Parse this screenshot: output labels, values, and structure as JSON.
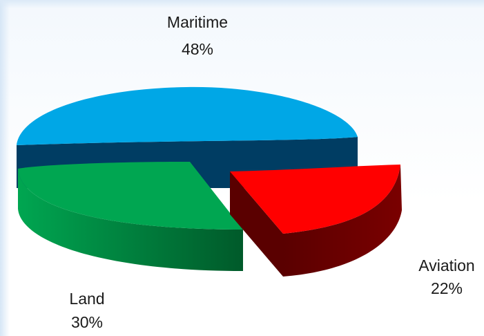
{
  "chart_data": {
    "type": "pie",
    "title": "",
    "labels": [
      "Maritime",
      "Aviation",
      "Land"
    ],
    "values": [
      48,
      22,
      30
    ],
    "value_labels": [
      "48%",
      "22%",
      "30%"
    ],
    "legend": "none",
    "colors": {
      "Maritime": {
        "top": "#00a7e6",
        "side": "#003d63"
      },
      "Aviation": {
        "top": "#ff0000",
        "side": "#6b0000"
      },
      "Land": {
        "top": "#00a651",
        "side": "#006b32"
      }
    }
  }
}
